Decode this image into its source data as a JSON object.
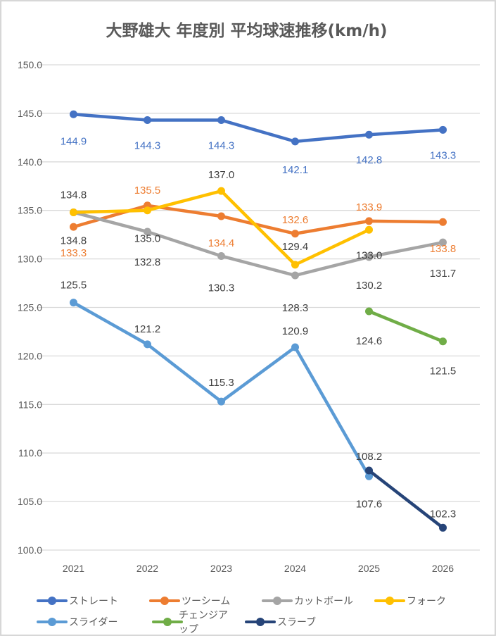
{
  "chart_data": {
    "type": "line",
    "title": "大野雄大 年度別 平均球速推移(km/h)",
    "xlabel": "",
    "ylabel": "",
    "categories": [
      "2021",
      "2022",
      "2023",
      "2024",
      "2025",
      "2026"
    ],
    "ylim": [
      100.0,
      150.0
    ],
    "yticks": [
      "100.0",
      "105.0",
      "110.0",
      "115.0",
      "120.0",
      "125.0",
      "130.0",
      "135.0",
      "140.0",
      "145.0",
      "150.0"
    ],
    "grid": true,
    "legend_position": "bottom",
    "series": [
      {
        "name": "ストレート",
        "color": "#4472C4",
        "label_color": "#4472C4",
        "values": [
          144.9,
          144.3,
          144.3,
          142.1,
          142.8,
          143.3
        ]
      },
      {
        "name": "ツーシーム",
        "color": "#ED7D31",
        "label_color": "#ED7D31",
        "values": [
          133.3,
          135.5,
          134.4,
          132.6,
          133.9,
          133.8
        ]
      },
      {
        "name": "カットボール",
        "color": "#A5A5A5",
        "label_color": "#404040",
        "values": [
          134.8,
          132.8,
          130.3,
          128.3,
          130.2,
          131.7
        ]
      },
      {
        "name": "フォーク",
        "color": "#FFC000",
        "label_color": "#404040",
        "values": [
          134.8,
          135.0,
          137.0,
          129.4,
          133.0,
          null
        ]
      },
      {
        "name": "スライダー",
        "color": "#5B9BD5",
        "label_color": "#404040",
        "values": [
          125.5,
          121.2,
          115.3,
          120.9,
          107.6,
          null
        ]
      },
      {
        "name": "チェンジアップ",
        "color": "#70AD47",
        "label_color": "#404040",
        "values": [
          null,
          null,
          null,
          null,
          124.6,
          121.5
        ]
      },
      {
        "name": "スラーブ",
        "color": "#264478",
        "label_color": "#404040",
        "values": [
          null,
          null,
          null,
          null,
          108.2,
          102.3
        ]
      }
    ]
  }
}
